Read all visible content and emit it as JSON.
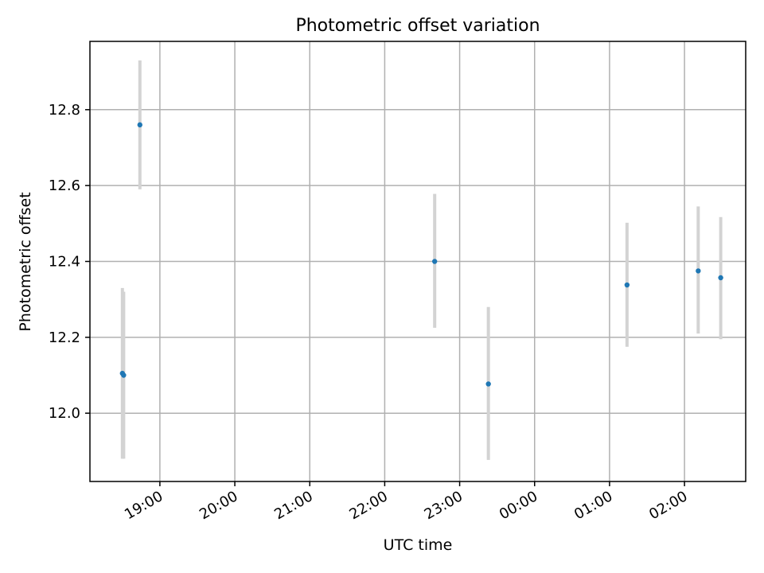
{
  "chart_data": {
    "type": "scatter",
    "title": "Photometric offset variation",
    "xlabel": "UTC time",
    "ylabel": "Photometric offset",
    "grid": true,
    "colors": {
      "marker": "#1f77b4",
      "errorbar": "#d3d3d3"
    },
    "x_ticks": [
      {
        "time": "19:00",
        "label": "19:00"
      },
      {
        "time": "20:00",
        "label": "20:00"
      },
      {
        "time": "21:00",
        "label": "21:00"
      },
      {
        "time": "22:00",
        "label": "22:00"
      },
      {
        "time": "23:00",
        "label": "23:00"
      },
      {
        "time": "00:00",
        "label": "00:00"
      },
      {
        "time": "01:00",
        "label": "01:00"
      },
      {
        "time": "02:00",
        "label": "02:00"
      }
    ],
    "y_ticks": [
      {
        "value": 12.0,
        "label": "12.0"
      },
      {
        "value": 12.2,
        "label": "12.2"
      },
      {
        "value": 12.4,
        "label": "12.4"
      },
      {
        "value": 12.6,
        "label": "12.6"
      },
      {
        "value": 12.8,
        "label": "12.8"
      }
    ],
    "xlim": [
      "18:04",
      "02:49"
    ],
    "ylim": [
      11.82,
      12.98
    ],
    "points": [
      {
        "time": "18:30",
        "y": 12.105,
        "err_low": 11.88,
        "err_high": 12.33
      },
      {
        "time": "18:31",
        "y": 12.1,
        "err_low": 11.88,
        "err_high": 12.32
      },
      {
        "time": "18:44",
        "y": 12.76,
        "err_low": 12.59,
        "err_high": 12.93
      },
      {
        "time": "22:40",
        "y": 12.4,
        "err_low": 12.225,
        "err_high": 12.578
      },
      {
        "time": "23:23",
        "y": 12.077,
        "err_low": 11.877,
        "err_high": 12.28
      },
      {
        "time": "01:14",
        "y": 12.338,
        "err_low": 12.175,
        "err_high": 12.502
      },
      {
        "time": "02:11",
        "y": 12.375,
        "err_low": 12.21,
        "err_high": 12.545
      },
      {
        "time": "02:29",
        "y": 12.357,
        "err_low": 12.195,
        "err_high": 12.517
      }
    ]
  }
}
